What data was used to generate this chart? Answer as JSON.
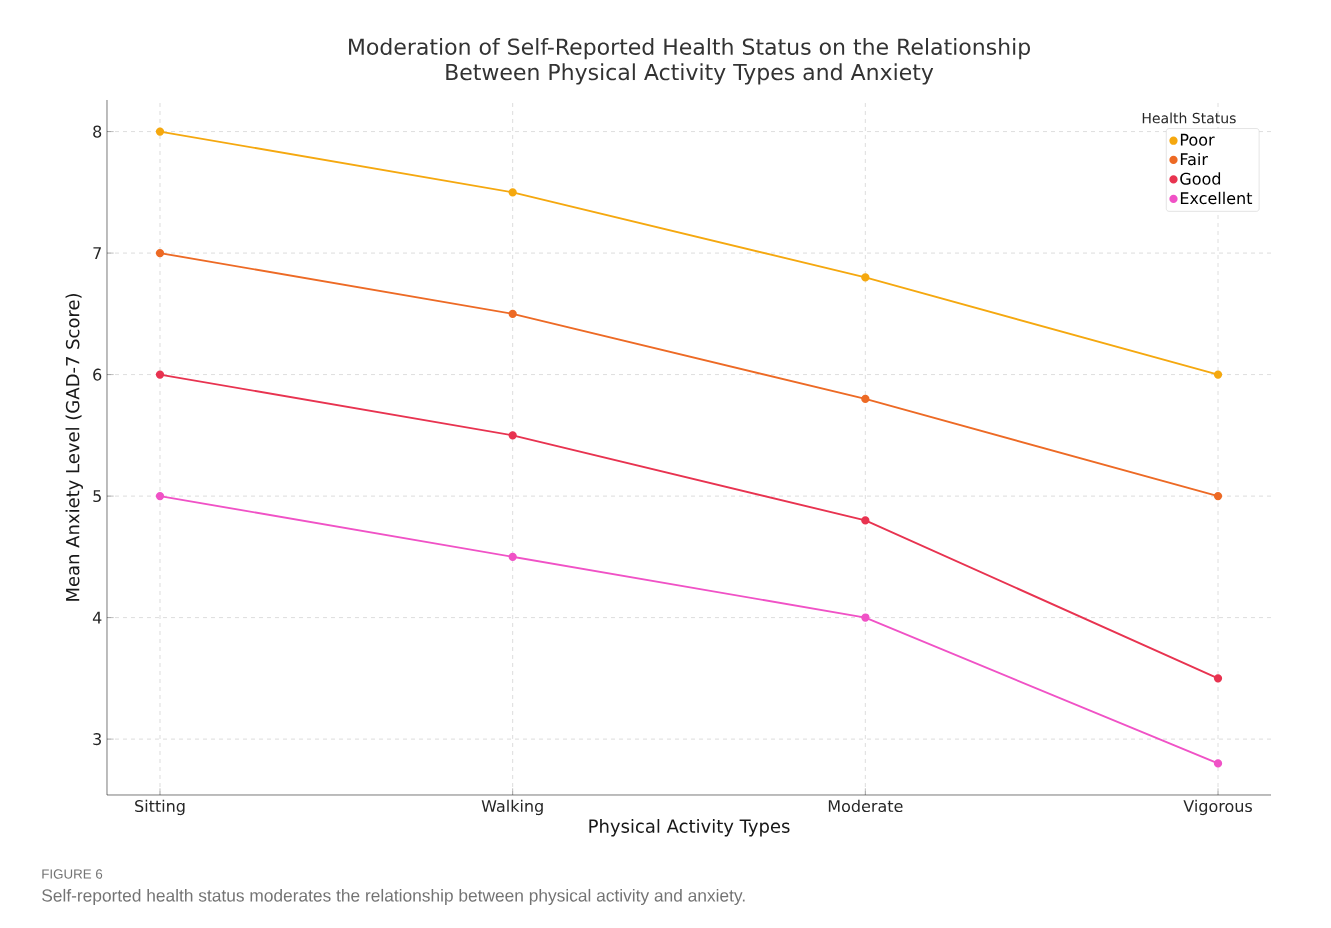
{
  "chart_data": {
    "type": "line",
    "title": "Moderation of Self-Reported Health Status on the Relationship\nBetween Physical Activity Types and Anxiety",
    "xlabel": "Physical Activity Types",
    "ylabel": "Mean Anxiety Level (GAD-7 Score)",
    "legend_title": "Health Status",
    "categories": [
      "Sitting",
      "Walking",
      "Moderate",
      "Vigorous"
    ],
    "series": [
      {
        "name": "Poor",
        "color": "#f5a80f",
        "values": [
          8,
          7.5,
          6.8,
          6
        ]
      },
      {
        "name": "Fair",
        "color": "#ed6a25",
        "values": [
          7,
          6.5,
          5.8,
          5
        ]
      },
      {
        "name": "Good",
        "color": "#e83350",
        "values": [
          6,
          5.5,
          4.8,
          3.5
        ]
      },
      {
        "name": "Excellent",
        "color": "#f052c6",
        "values": [
          5,
          4.5,
          4,
          2.8
        ]
      }
    ],
    "ylim": [
      2.54,
      8.26
    ],
    "yticks": [
      3,
      4,
      5,
      6,
      7,
      8
    ],
    "grid": true,
    "legend": "top right",
    "marker": "circle",
    "line_style": "solid",
    "annotations": [
      "FIGURE 6",
      "Self-reported health status moderates the relationship between physical activity and anxiety."
    ]
  }
}
